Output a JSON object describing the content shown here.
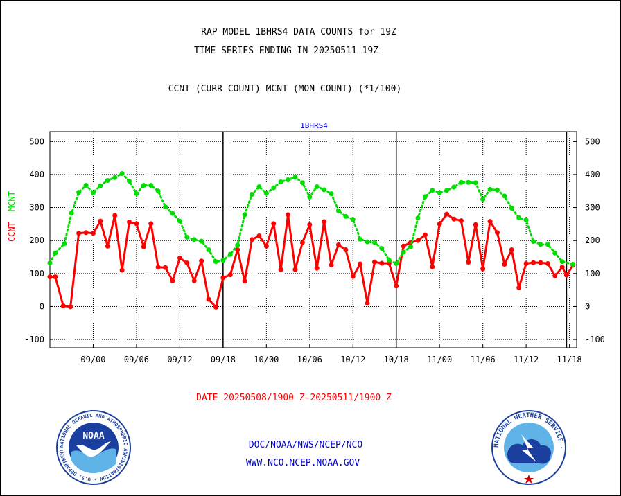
{
  "header": {
    "title_line1": "RAP MODEL 1BHRS4 DATA COUNTS for 19Z",
    "title_line2": "TIME SERIES ENDING IN 20250511 19Z",
    "legend_text": "CCNT (CURR COUNT) MCNT (MON COUNT) (*1/100)"
  },
  "footer": {
    "date_range": "DATE 20250508/1900 Z-20250511/1900 Z",
    "org": "DOC/NOAA/NWS/NCEP/NCO",
    "url": "WWW.NCO.NCEP.NOAA.GOV"
  },
  "logos": {
    "noaa_text": "NOAA",
    "noaa_ring_text": "NATIONAL OCEANIC AND ATMOSPHERIC ADMINISTRATION · U.S. DEPARTMENT OF COMMERCE ·",
    "nws_ring_text": "NATIONAL WEATHER SERVICE ·"
  },
  "colors": {
    "ccnt": "#ff0000",
    "mcnt": "#00dd00",
    "panel_title": "#0000cc",
    "footer_link": "#0000cc",
    "date_text": "#ff0000"
  },
  "chart_data": {
    "type": "line",
    "title": "1BHRS4",
    "ylabel_ccnt": "CCNT",
    "ylabel_mcnt": "MCNT",
    "ylim": [
      -125,
      530
    ],
    "yticks": [
      500,
      400,
      300,
      200,
      100,
      0,
      -100
    ],
    "xticks": [
      "09/00",
      "09/06",
      "09/12",
      "09/18",
      "10/00",
      "10/06",
      "10/12",
      "10/18",
      "11/00",
      "11/06",
      "11/12",
      "11/18"
    ],
    "xtick_hours": [
      29,
      35,
      41,
      47,
      53,
      59,
      65,
      71,
      77,
      83,
      89,
      95
    ],
    "xlim_hours": [
      23,
      96
    ],
    "day_dividers_hours": [
      47,
      71,
      94.6
    ],
    "grid": true,
    "series": [
      {
        "name": "CCNT",
        "color": "#ff0000",
        "x": [
          23,
          23.75,
          24.85,
          25.85,
          27,
          28,
          29,
          30,
          31,
          32,
          33,
          34,
          35,
          36,
          37,
          38,
          39,
          40,
          41,
          42,
          43,
          44,
          45,
          46,
          47,
          48,
          49,
          50,
          51,
          52,
          53,
          54,
          55,
          56,
          57,
          58,
          59,
          60,
          61,
          62,
          63,
          64,
          65,
          66,
          67,
          68,
          69,
          70,
          71,
          72,
          73,
          74,
          75,
          76,
          77,
          78,
          79,
          80,
          81,
          82,
          83,
          84,
          85,
          86,
          87,
          88,
          89,
          90,
          91,
          92,
          93,
          94,
          94.6,
          95.5
        ],
        "values": [
          90,
          90,
          2,
          -1,
          222,
          224,
          222,
          259,
          183,
          276,
          110,
          256,
          251,
          181,
          251,
          119,
          118,
          78,
          147,
          132,
          78,
          138,
          22,
          -2,
          87,
          96,
          172,
          77,
          203,
          214,
          183,
          251,
          112,
          278,
          112,
          194,
          248,
          116,
          257,
          126,
          187,
          172,
          91,
          129,
          10,
          135,
          131,
          131,
          62,
          183,
          194,
          200,
          217,
          120,
          250,
          280,
          265,
          260,
          134,
          248,
          114,
          258,
          224,
          128,
          172,
          57,
          130,
          133,
          133,
          130,
          93,
          119,
          95,
          125
        ]
      },
      {
        "name": "MCNT",
        "color": "#00dd00",
        "x": [
          23,
          23.75,
          25,
          26,
          27,
          28,
          29,
          30,
          31,
          32,
          33,
          34,
          35,
          36,
          37,
          38,
          39,
          40,
          41,
          42,
          43,
          44,
          45,
          46,
          47,
          48,
          49,
          50,
          51,
          52,
          53,
          54,
          55,
          56,
          57,
          58,
          59,
          60,
          61,
          62,
          63,
          64,
          65,
          66,
          67,
          68,
          69,
          70,
          71,
          72,
          73,
          74,
          75,
          76,
          77,
          78,
          79,
          80,
          81,
          82,
          83,
          84,
          85,
          86,
          87,
          88,
          89,
          90,
          91,
          92,
          93,
          94,
          95.5
        ],
        "values": [
          132,
          162,
          190,
          283,
          346,
          367,
          345,
          366,
          382,
          391,
          403,
          380,
          342,
          367,
          367,
          350,
          302,
          282,
          259,
          210,
          203,
          198,
          172,
          136,
          140,
          158,
          186,
          278,
          340,
          363,
          343,
          360,
          378,
          384,
          392,
          375,
          332,
          363,
          354,
          342,
          290,
          273,
          264,
          204,
          196,
          194,
          176,
          141,
          130,
          165,
          181,
          268,
          333,
          352,
          345,
          352,
          362,
          376,
          376,
          375,
          325,
          355,
          353,
          335,
          298,
          269,
          262,
          197,
          188,
          188,
          162,
          136,
          128
        ]
      }
    ]
  }
}
